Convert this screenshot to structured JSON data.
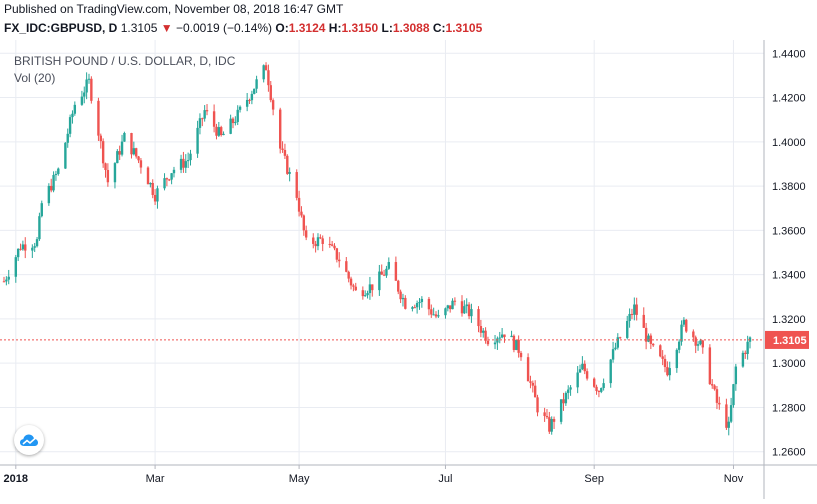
{
  "header": {
    "published": "Published on TradingView.com, November 08, 2018 16:47 GMT"
  },
  "quote": {
    "symbol": "FX_IDC:GBPUSD, D",
    "last": "1.3105",
    "arrow": "▼",
    "change": "−0.0019 (−0.14%)",
    "o_label": "O:",
    "o_value": "1.3124",
    "h_label": "H:",
    "h_value": "1.3150",
    "l_label": "L:",
    "l_value": "1.3088",
    "c_label": "C:",
    "c_value": "1.3105"
  },
  "legend": {
    "title": "BRITISH POUND / U.S. DOLLAR, D, IDC",
    "indicator": "Vol (20)"
  },
  "colors": {
    "up": "#26a69a",
    "down": "#ef5350",
    "grid": "#e9ecf2",
    "last_line": "#ef5350",
    "price_tag": "#ef5350"
  },
  "logo_icon": "tradingview-cloud-icon",
  "chart_data": {
    "type": "candlestick",
    "title": "BRITISH POUND / U.S. DOLLAR, D, IDC",
    "ylim": [
      1.254,
      1.446
    ],
    "y_ticks": [
      "1.4400",
      "1.4200",
      "1.4000",
      "1.3800",
      "1.3600",
      "1.3400",
      "1.3200",
      "1.3000",
      "1.2800",
      "1.2600"
    ],
    "x_ticks": [
      "2018",
      "Mar",
      "May",
      "Jul",
      "Sep",
      "Nov"
    ],
    "x_tick_dates": [
      "2018-01-01",
      "2018-03-01",
      "2018-05-01",
      "2018-07-02",
      "2018-09-03",
      "2018-11-01"
    ],
    "last_price": "1.3105",
    "grid": true,
    "date_range": [
      "2017-12-27",
      "2018-11-08"
    ],
    "close_waypoints": [
      [
        "2017-12-27",
        1.337
      ],
      [
        "2018-01-03",
        1.353
      ],
      [
        "2018-01-10",
        1.355
      ],
      [
        "2018-01-12",
        1.372
      ],
      [
        "2018-01-19",
        1.387
      ],
      [
        "2018-01-26",
        1.417
      ],
      [
        "2018-02-01",
        1.427
      ],
      [
        "2018-02-09",
        1.382
      ],
      [
        "2018-02-16",
        1.402
      ],
      [
        "2018-02-23",
        1.39
      ],
      [
        "2018-03-01",
        1.376
      ],
      [
        "2018-03-08",
        1.387
      ],
      [
        "2018-03-15",
        1.392
      ],
      [
        "2018-03-22",
        1.414
      ],
      [
        "2018-03-29",
        1.402
      ],
      [
        "2018-04-05",
        1.412
      ],
      [
        "2018-04-12",
        1.425
      ],
      [
        "2018-04-17",
        1.434
      ],
      [
        "2018-04-23",
        1.397
      ],
      [
        "2018-04-30",
        1.376
      ],
      [
        "2018-05-04",
        1.354
      ],
      [
        "2018-05-11",
        1.356
      ],
      [
        "2018-05-18",
        1.347
      ],
      [
        "2018-05-25",
        1.332
      ],
      [
        "2018-06-01",
        1.335
      ],
      [
        "2018-06-08",
        1.343
      ],
      [
        "2018-06-15",
        1.327
      ],
      [
        "2018-06-22",
        1.328
      ],
      [
        "2018-06-29",
        1.32
      ],
      [
        "2018-07-06",
        1.328
      ],
      [
        "2018-07-13",
        1.322
      ],
      [
        "2018-07-20",
        1.311
      ],
      [
        "2018-07-27",
        1.314
      ],
      [
        "2018-08-03",
        1.305
      ],
      [
        "2018-08-10",
        1.28
      ],
      [
        "2018-08-15",
        1.271
      ],
      [
        "2018-08-22",
        1.285
      ],
      [
        "2018-08-29",
        1.298
      ],
      [
        "2018-09-05",
        1.288
      ],
      [
        "2018-09-12",
        1.307
      ],
      [
        "2018-09-20",
        1.325
      ],
      [
        "2018-09-27",
        1.307
      ],
      [
        "2018-10-04",
        1.297
      ],
      [
        "2018-10-11",
        1.318
      ],
      [
        "2018-10-18",
        1.308
      ],
      [
        "2018-10-25",
        1.282
      ],
      [
        "2018-10-30",
        1.271
      ],
      [
        "2018-11-02",
        1.298
      ],
      [
        "2018-11-08",
        1.3105
      ]
    ]
  }
}
